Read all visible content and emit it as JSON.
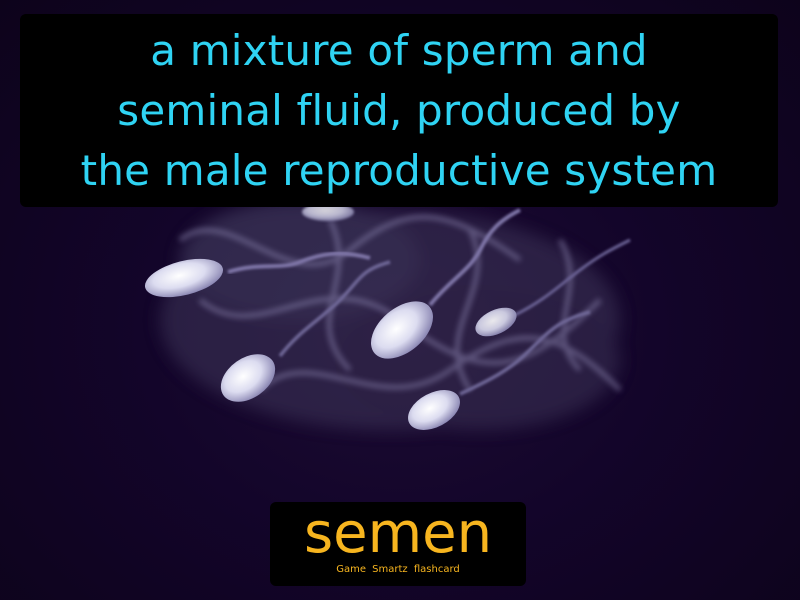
{
  "definition": {
    "line1": "a mixture of sperm and",
    "line2": "seminal fluid, produced by",
    "line3": "the male reproductive system"
  },
  "term": "semen",
  "brand": "Game Smartz flashcard",
  "colors": {
    "background": "#10041f",
    "definition_text": "#2fd3f3",
    "term_text": "#f7b51f",
    "box": "#000000"
  }
}
